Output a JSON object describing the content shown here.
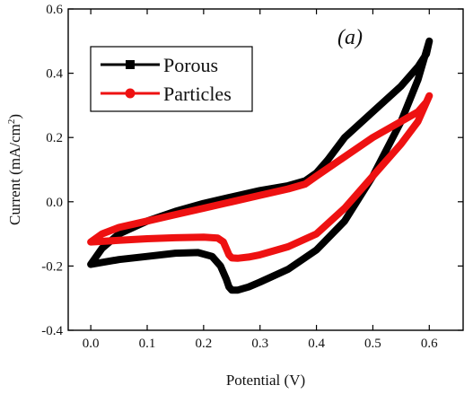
{
  "chart_data": {
    "type": "line",
    "panel_label": "(a)",
    "xlabel": "Potential (V)",
    "ylabel_main": "Current (mA/cm",
    "ylabel_sup": "2",
    "ylabel_tail": ")",
    "xlim": [
      -0.04,
      0.66
    ],
    "ylim": [
      -0.4,
      0.6
    ],
    "xticks": [
      0.0,
      0.1,
      0.2,
      0.3,
      0.4,
      0.5,
      0.6
    ],
    "xtick_labels": [
      "0.0",
      "0.1",
      "0.2",
      "0.3",
      "0.4",
      "0.5",
      "0.6"
    ],
    "yticks": [
      -0.4,
      -0.2,
      0.0,
      0.2,
      0.4,
      0.6
    ],
    "ytick_labels": [
      "-0.4",
      "-0.2",
      "0.0",
      "0.2",
      "0.4",
      "0.6"
    ],
    "grid": false,
    "legend_position": "top-left",
    "series": [
      {
        "name": "Porous",
        "color": "#000000",
        "marker": "square",
        "points": [
          [
            0.0,
            -0.195
          ],
          [
            0.05,
            -0.18
          ],
          [
            0.1,
            -0.17
          ],
          [
            0.15,
            -0.16
          ],
          [
            0.19,
            -0.158
          ],
          [
            0.215,
            -0.17
          ],
          [
            0.23,
            -0.2
          ],
          [
            0.24,
            -0.24
          ],
          [
            0.245,
            -0.265
          ],
          [
            0.25,
            -0.275
          ],
          [
            0.26,
            -0.275
          ],
          [
            0.28,
            -0.265
          ],
          [
            0.3,
            -0.25
          ],
          [
            0.35,
            -0.21
          ],
          [
            0.4,
            -0.15
          ],
          [
            0.45,
            -0.06
          ],
          [
            0.5,
            0.08
          ],
          [
            0.55,
            0.25
          ],
          [
            0.58,
            0.38
          ],
          [
            0.6,
            0.5
          ],
          [
            0.595,
            0.46
          ],
          [
            0.58,
            0.42
          ],
          [
            0.55,
            0.36
          ],
          [
            0.5,
            0.28
          ],
          [
            0.45,
            0.2
          ],
          [
            0.42,
            0.13
          ],
          [
            0.4,
            0.09
          ],
          [
            0.38,
            0.065
          ],
          [
            0.35,
            0.05
          ],
          [
            0.3,
            0.035
          ],
          [
            0.25,
            0.015
          ],
          [
            0.2,
            -0.005
          ],
          [
            0.15,
            -0.03
          ],
          [
            0.1,
            -0.06
          ],
          [
            0.05,
            -0.1
          ],
          [
            0.02,
            -0.145
          ],
          [
            0.0,
            -0.195
          ]
        ]
      },
      {
        "name": "Particles",
        "color": "#ee1111",
        "marker": "circle",
        "points": [
          [
            0.0,
            -0.125
          ],
          [
            0.05,
            -0.12
          ],
          [
            0.1,
            -0.115
          ],
          [
            0.15,
            -0.112
          ],
          [
            0.2,
            -0.11
          ],
          [
            0.225,
            -0.113
          ],
          [
            0.235,
            -0.125
          ],
          [
            0.24,
            -0.145
          ],
          [
            0.245,
            -0.165
          ],
          [
            0.25,
            -0.175
          ],
          [
            0.26,
            -0.176
          ],
          [
            0.28,
            -0.172
          ],
          [
            0.3,
            -0.165
          ],
          [
            0.35,
            -0.14
          ],
          [
            0.4,
            -0.1
          ],
          [
            0.45,
            -0.02
          ],
          [
            0.5,
            0.08
          ],
          [
            0.55,
            0.18
          ],
          [
            0.58,
            0.25
          ],
          [
            0.6,
            0.33
          ],
          [
            0.595,
            0.31
          ],
          [
            0.58,
            0.28
          ],
          [
            0.55,
            0.25
          ],
          [
            0.5,
            0.2
          ],
          [
            0.45,
            0.14
          ],
          [
            0.4,
            0.08
          ],
          [
            0.38,
            0.055
          ],
          [
            0.35,
            0.04
          ],
          [
            0.3,
            0.02
          ],
          [
            0.25,
            0.0
          ],
          [
            0.2,
            -0.02
          ],
          [
            0.15,
            -0.04
          ],
          [
            0.1,
            -0.06
          ],
          [
            0.05,
            -0.08
          ],
          [
            0.02,
            -0.1
          ],
          [
            0.0,
            -0.125
          ]
        ]
      }
    ]
  }
}
